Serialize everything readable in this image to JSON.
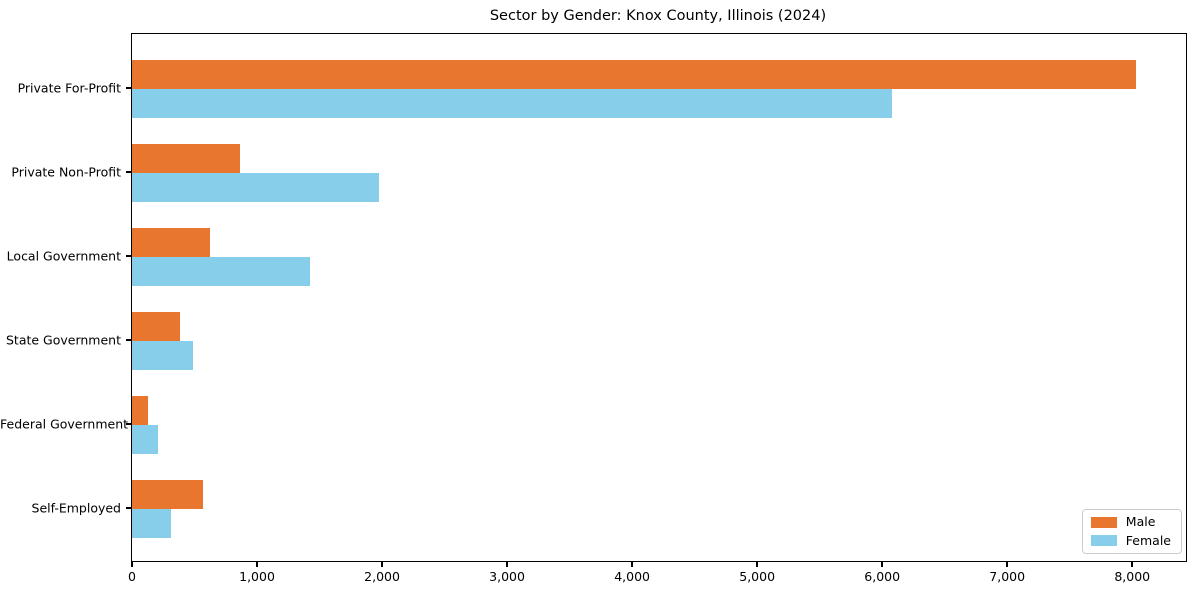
{
  "figure": {
    "background": "#ffffff"
  },
  "chart_data": {
    "type": "bar",
    "orientation": "horizontal",
    "title": "Sector by Gender: Knox County, Illinois (2024)",
    "categories": [
      "Private For-Profit",
      "Private Non-Profit",
      "Local Government",
      "State Government",
      "Federal Government",
      "Self-Employed"
    ],
    "series": [
      {
        "name": "Male",
        "color": "#e8762f",
        "values": [
          8030,
          865,
          620,
          380,
          125,
          570
        ]
      },
      {
        "name": "Female",
        "color": "#87ceeb",
        "values": [
          6075,
          1975,
          1420,
          490,
          205,
          315
        ]
      }
    ],
    "xlabel": "",
    "ylabel": "",
    "xlim": [
      0,
      8430
    ],
    "xtick_values": [
      0,
      1000,
      2000,
      3000,
      4000,
      5000,
      6000,
      7000,
      8000
    ],
    "xtick_labels": [
      "0",
      "1,000",
      "2,000",
      "3,000",
      "4,000",
      "5,000",
      "6,000",
      "7,000",
      "8,000"
    ],
    "grid": false,
    "legend": {
      "position": "lower-right",
      "entries": [
        "Male",
        "Female"
      ]
    }
  }
}
